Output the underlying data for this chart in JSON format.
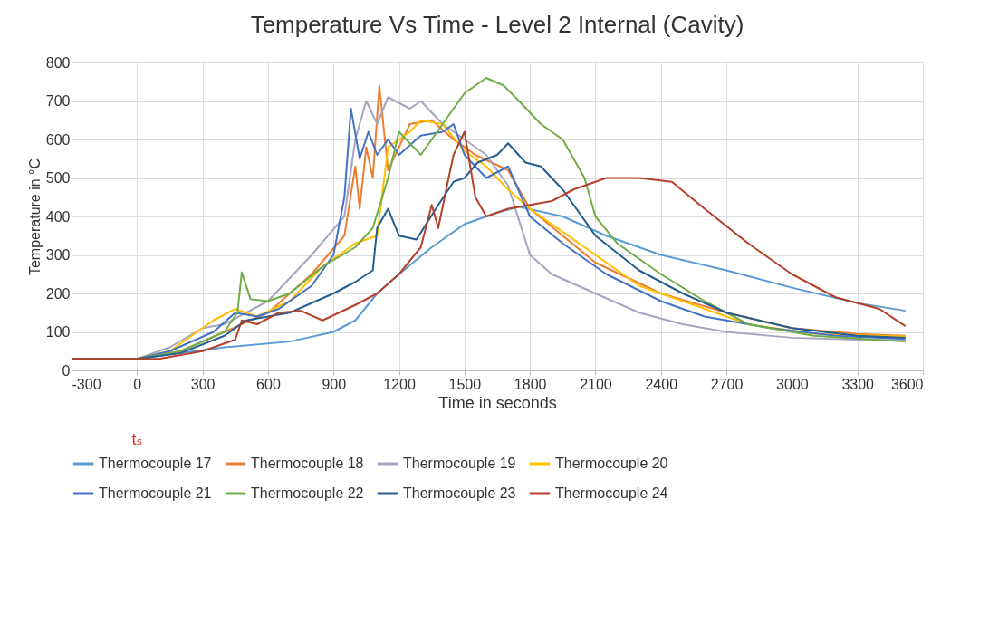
{
  "chart_data": {
    "type": "line",
    "title": "Temperature Vs Time - Level 2 Internal (Cavity)",
    "xlabel": "Time in seconds",
    "ylabel": "Temperature in °C",
    "xlim": [
      -300,
      3600
    ],
    "xticks": [
      -300,
      0,
      300,
      600,
      900,
      1200,
      1500,
      1800,
      2100,
      2400,
      2700,
      3000,
      3300,
      3600
    ],
    "ylim": [
      0,
      800
    ],
    "yticks": [
      0,
      100,
      200,
      300,
      400,
      500,
      600,
      700,
      800
    ],
    "grid": true,
    "legend": "bottom",
    "marker": "none",
    "line_style": "solid",
    "annotations": [
      "tₛ"
    ],
    "series": [
      {
        "name": "Thermocouple 17",
        "color": "#5b9bd5",
        "x": [
          -300,
          0,
          400,
          700,
          900,
          1000,
          1100,
          1200,
          1350,
          1500,
          1650,
          1750,
          1950,
          2150,
          2400,
          2700,
          3000,
          3300,
          3520
        ],
        "values": [
          30,
          30,
          60,
          75,
          100,
          130,
          200,
          250,
          320,
          380,
          410,
          425,
          400,
          350,
          300,
          260,
          215,
          175,
          155
        ]
      },
      {
        "name": "Thermocouple 18",
        "color": "#ed7d31",
        "x": [
          -300,
          0,
          200,
          400,
          600,
          800,
          950,
          1000,
          1020,
          1050,
          1080,
          1110,
          1150,
          1250,
          1350,
          1450,
          1550,
          1700,
          1800,
          1950,
          2100,
          2400,
          2700,
          3000,
          3300,
          3520
        ],
        "values": [
          30,
          30,
          50,
          100,
          150,
          250,
          350,
          530,
          420,
          580,
          500,
          740,
          520,
          640,
          650,
          600,
          560,
          520,
          420,
          350,
          280,
          200,
          150,
          110,
          95,
          90
        ]
      },
      {
        "name": "Thermocouple 19",
        "color": "#a5a5c0",
        "x": [
          -300,
          0,
          150,
          300,
          400,
          600,
          800,
          950,
          1000,
          1050,
          1100,
          1150,
          1250,
          1300,
          1400,
          1500,
          1600,
          1700,
          1800,
          1900,
          2100,
          2300,
          2500,
          2700,
          3000,
          3300,
          3520
        ],
        "values": [
          30,
          30,
          60,
          110,
          120,
          180,
          300,
          400,
          600,
          700,
          640,
          710,
          680,
          700,
          640,
          600,
          560,
          480,
          300,
          250,
          200,
          150,
          120,
          100,
          85,
          80,
          78
        ]
      },
      {
        "name": "Thermocouple 20",
        "color": "#ffc000",
        "x": [
          -300,
          0,
          150,
          350,
          450,
          550,
          700,
          850,
          1000,
          1100,
          1150,
          1250,
          1300,
          1400,
          1500,
          1600,
          1700,
          1800,
          1900,
          2100,
          2300,
          2600,
          2800,
          3100,
          3520
        ],
        "values": [
          30,
          30,
          50,
          130,
          160,
          140,
          180,
          270,
          330,
          350,
          580,
          620,
          650,
          640,
          570,
          530,
          470,
          420,
          380,
          300,
          220,
          160,
          120,
          95,
          88
        ]
      },
      {
        "name": "Thermocouple 21",
        "color": "#4472c4",
        "x": [
          -300,
          0,
          150,
          350,
          450,
          550,
          650,
          800,
          900,
          950,
          980,
          1020,
          1060,
          1100,
          1150,
          1200,
          1300,
          1400,
          1450,
          1500,
          1600,
          1700,
          1800,
          1950,
          2150,
          2400,
          2600,
          2900,
          3200,
          3520
        ],
        "values": [
          30,
          30,
          50,
          100,
          150,
          140,
          160,
          220,
          300,
          450,
          680,
          550,
          620,
          560,
          600,
          560,
          610,
          620,
          640,
          560,
          500,
          530,
          400,
          330,
          250,
          180,
          140,
          110,
          90,
          82
        ]
      },
      {
        "name": "Thermocouple 22",
        "color": "#70ad47",
        "x": [
          -300,
          0,
          200,
          400,
          460,
          480,
          520,
          600,
          700,
          850,
          1000,
          1080,
          1150,
          1200,
          1300,
          1400,
          1500,
          1600,
          1680,
          1750,
          1850,
          1950,
          2050,
          2100,
          2200,
          2400,
          2600,
          2800,
          3100,
          3520
        ],
        "values": [
          30,
          30,
          50,
          100,
          150,
          255,
          185,
          180,
          200,
          270,
          320,
          370,
          500,
          620,
          560,
          640,
          720,
          760,
          740,
          700,
          640,
          600,
          500,
          400,
          330,
          250,
          180,
          120,
          90,
          75
        ]
      },
      {
        "name": "Thermocouple 23",
        "color": "#255e91",
        "x": [
          -300,
          0,
          200,
          400,
          500,
          700,
          900,
          1000,
          1080,
          1100,
          1150,
          1200,
          1280,
          1380,
          1450,
          1500,
          1560,
          1650,
          1700,
          1780,
          1850,
          1950,
          2100,
          2300,
          2500,
          2700,
          3000,
          3300,
          3520
        ],
        "values": [
          30,
          30,
          45,
          90,
          130,
          150,
          200,
          230,
          260,
          370,
          420,
          350,
          340,
          430,
          490,
          500,
          540,
          560,
          590,
          540,
          530,
          470,
          350,
          260,
          200,
          150,
          110,
          90,
          85
        ]
      },
      {
        "name": "Thermocouple 24",
        "color": "#b5412b",
        "x": [
          -300,
          100,
          300,
          450,
          480,
          550,
          650,
          750,
          850,
          1000,
          1100,
          1200,
          1300,
          1350,
          1380,
          1420,
          1450,
          1500,
          1550,
          1600,
          1700,
          1800,
          1900,
          2000,
          2150,
          2300,
          2450,
          2600,
          2800,
          3000,
          3200,
          3400,
          3520
        ],
        "values": [
          30,
          30,
          50,
          80,
          130,
          120,
          150,
          155,
          130,
          170,
          200,
          250,
          320,
          430,
          370,
          480,
          560,
          620,
          450,
          400,
          420,
          430,
          440,
          470,
          500,
          500,
          490,
          420,
          330,
          250,
          190,
          160,
          115
        ]
      }
    ]
  }
}
